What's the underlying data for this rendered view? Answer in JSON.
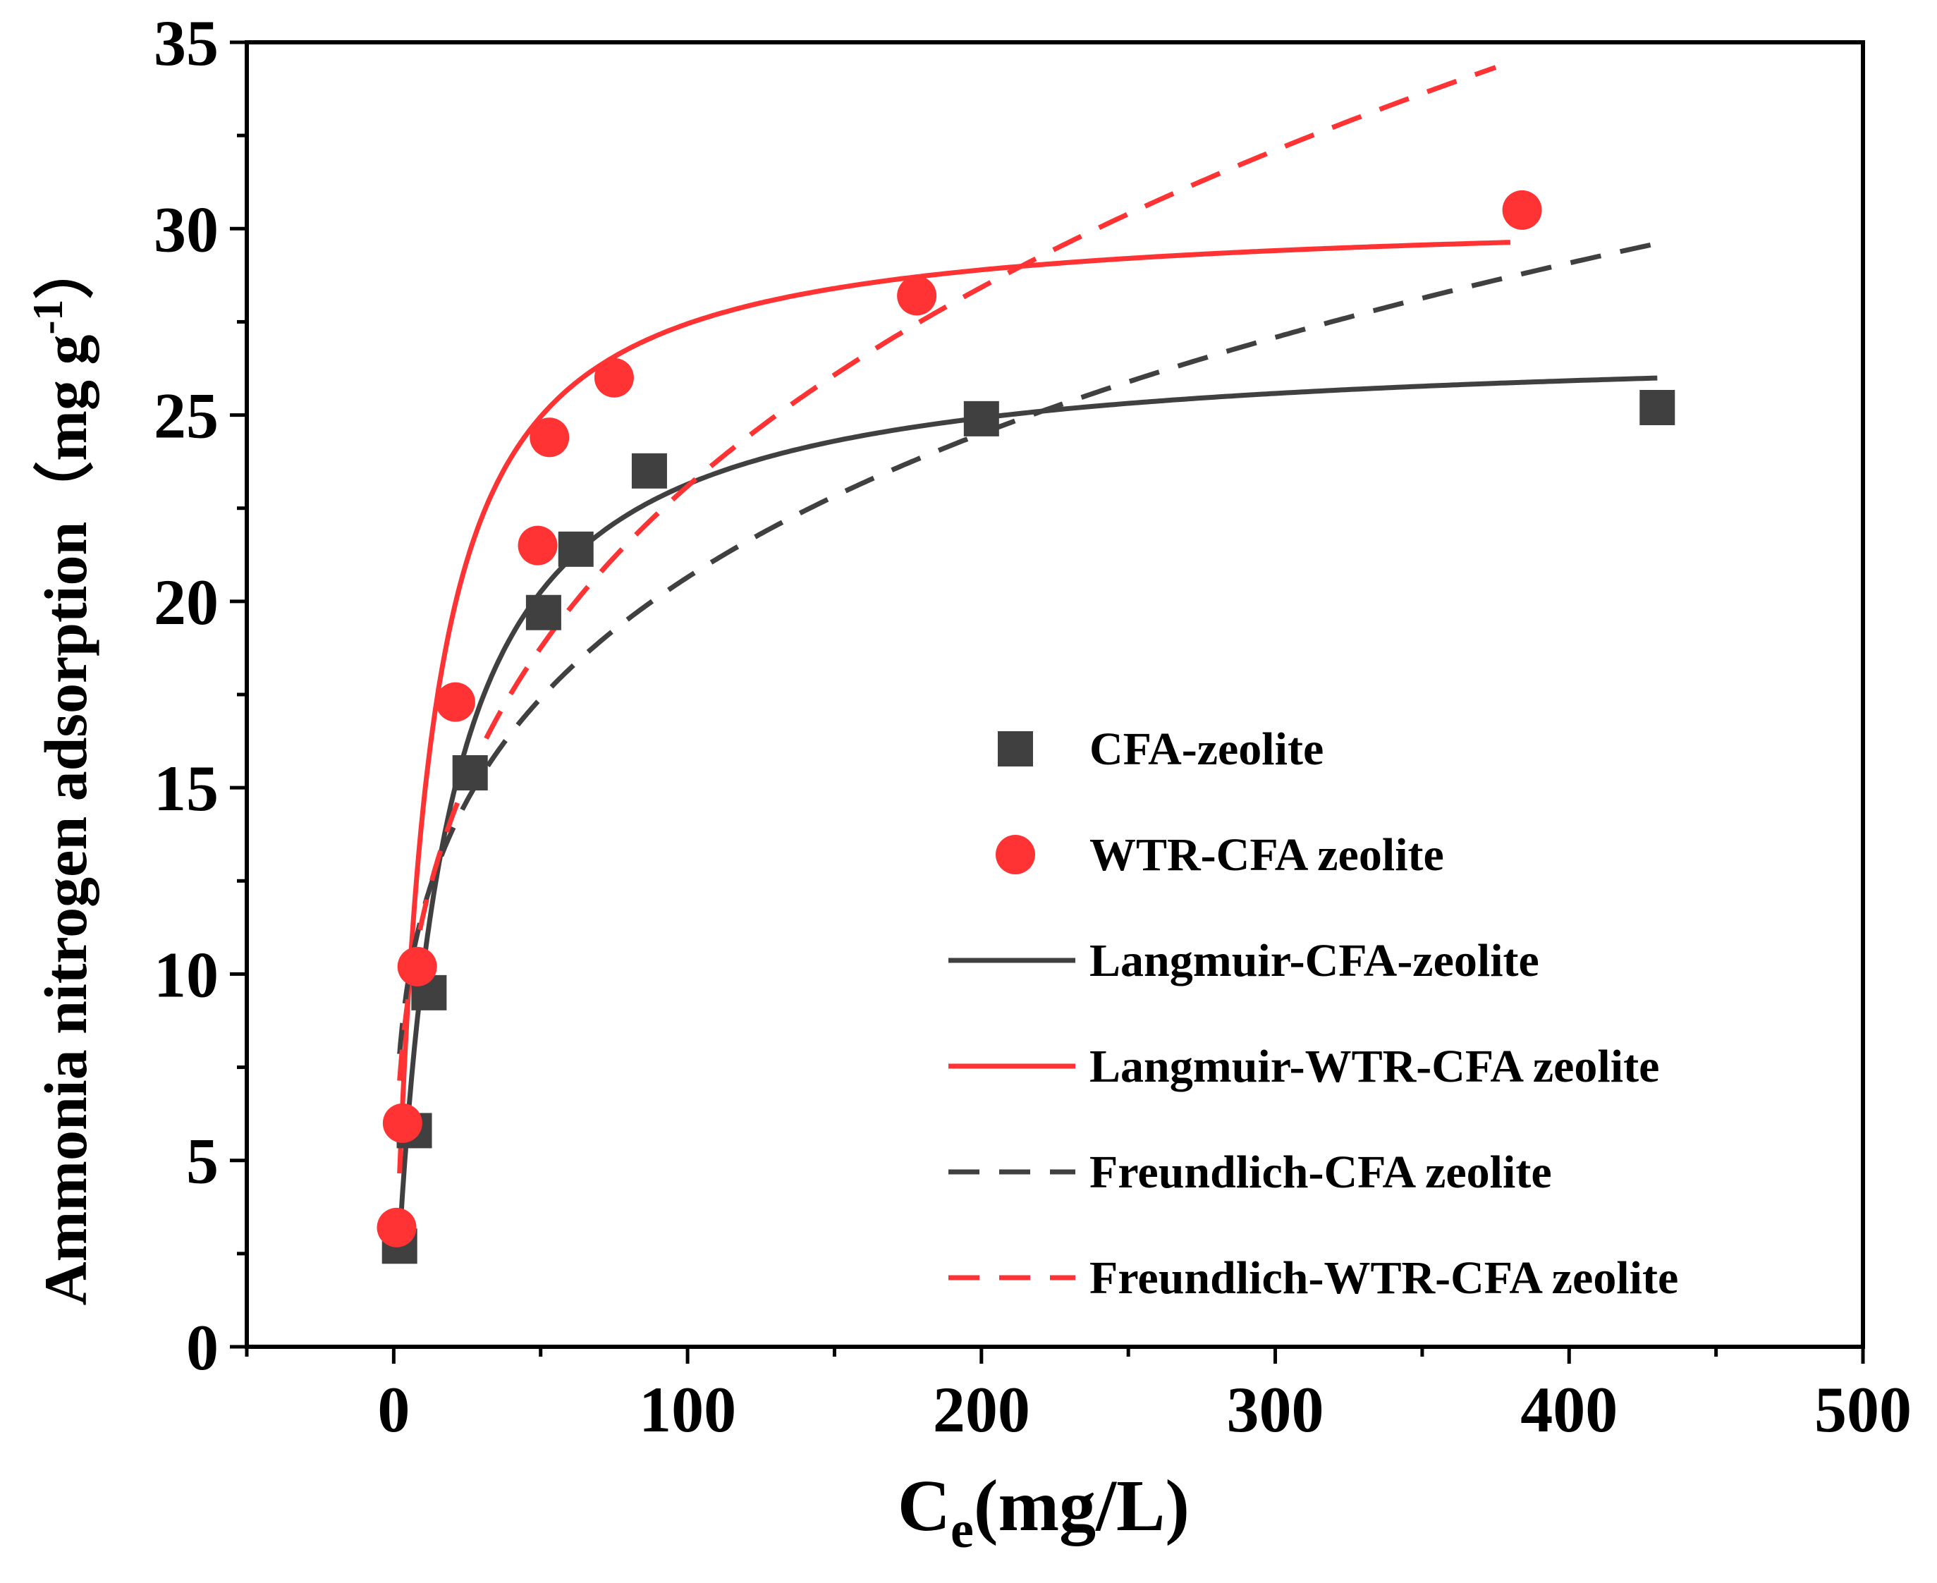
{
  "chart_data": {
    "type": "scatter",
    "title": "",
    "xlabel": {
      "main": "C",
      "sub": "e",
      "rest": "(mg/L)"
    },
    "ylabel": {
      "main": "Ammonia nitrogen adsorption（mg g",
      "sup": "-1",
      "rest": "）"
    },
    "xlim": [
      -50,
      500
    ],
    "ylim": [
      0,
      35
    ],
    "x_ticks": [
      0,
      100,
      200,
      300,
      400,
      500
    ],
    "y_ticks": [
      0,
      5,
      10,
      15,
      20,
      25,
      30,
      35
    ],
    "x_tick_labels": [
      "0",
      "100",
      "200",
      "300",
      "400",
      "500"
    ],
    "y_tick_labels": [
      "0",
      "5",
      "10",
      "15",
      "20",
      "25",
      "30",
      "35"
    ],
    "series": [
      {
        "name": "CFA-zeolite",
        "kind": "marker",
        "marker": "square",
        "color": "#404040",
        "points": [
          [
            2,
            2.7
          ],
          [
            7,
            5.8
          ],
          [
            12,
            9.5
          ],
          [
            26,
            15.4
          ],
          [
            51,
            19.7
          ],
          [
            62,
            21.4
          ],
          [
            87,
            23.5
          ],
          [
            200,
            24.9
          ],
          [
            430,
            25.2
          ]
        ]
      },
      {
        "name": "WTR-CFA zeolite",
        "kind": "marker",
        "marker": "circle",
        "color": "#ff3333",
        "points": [
          [
            1,
            3.2
          ],
          [
            3,
            6.0
          ],
          [
            8,
            10.2
          ],
          [
            21,
            17.3
          ],
          [
            49,
            21.5
          ],
          [
            53,
            24.4
          ],
          [
            75,
            26.0
          ],
          [
            178,
            28.2
          ],
          [
            384,
            30.5
          ]
        ]
      },
      {
        "name": "Langmuir-CFA-zeolite",
        "kind": "line",
        "dash": "solid",
        "color": "#404040",
        "model": {
          "type": "langmuir",
          "qm": 27.0,
          "KL": 0.06,
          "x_range": [
            2,
            430
          ]
        }
      },
      {
        "name": "Langmuir-WTR-CFA zeolite",
        "kind": "line",
        "dash": "solid",
        "color": "#ff3333",
        "model": {
          "type": "langmuir",
          "qm": 30.5,
          "KL": 0.09,
          "x_range": [
            2,
            380
          ]
        }
      },
      {
        "name": "Freundlich-CFA zeolite",
        "kind": "line",
        "dash": "dashed",
        "color": "#404040",
        "model": {
          "type": "freundlich",
          "KF": 6.62,
          "n_inv": 0.247,
          "x_range": [
            2,
            430
          ]
        }
      },
      {
        "name": "Freundlich-WTR-CFA zeolite",
        "kind": "line",
        "dash": "dashed",
        "color": "#ff3333",
        "model": {
          "type": "freundlich",
          "KF": 5.8,
          "n_inv": 0.3,
          "x_range": [
            2,
            375
          ]
        }
      }
    ],
    "legend": {
      "position": "center-right"
    }
  }
}
